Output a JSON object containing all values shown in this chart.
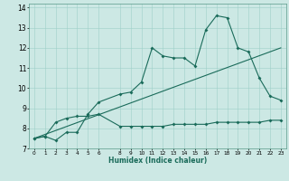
{
  "xlabel": "Humidex (Indice chaleur)",
  "background_color": "#cce8e4",
  "line_color": "#1a6b5a",
  "xlim": [
    -0.5,
    23.5
  ],
  "ylim": [
    7,
    14.2
  ],
  "yticks": [
    7,
    8,
    9,
    10,
    11,
    12,
    13,
    14
  ],
  "xtick_vals": [
    0,
    1,
    2,
    3,
    4,
    5,
    6,
    8,
    9,
    10,
    11,
    12,
    13,
    14,
    15,
    16,
    17,
    18,
    19,
    20,
    21,
    22,
    23
  ],
  "xtick_labels": [
    "0",
    "1",
    "2",
    "3",
    "4",
    "5",
    "6",
    "8",
    "9",
    "10",
    "11",
    "12",
    "13",
    "14",
    "15",
    "16",
    "17",
    "18",
    "19",
    "20",
    "21",
    "22",
    "23"
  ],
  "main_x": [
    0,
    1,
    2,
    3,
    4,
    5,
    6,
    8,
    9,
    10,
    11,
    12,
    13,
    14,
    15,
    16,
    17,
    18,
    19,
    20,
    21,
    22,
    23
  ],
  "main_y": [
    7.5,
    7.6,
    7.4,
    7.8,
    7.8,
    8.7,
    9.3,
    9.7,
    9.8,
    10.3,
    12.0,
    11.6,
    11.5,
    11.5,
    11.1,
    12.9,
    13.6,
    13.5,
    12.0,
    11.8,
    10.5,
    9.6,
    9.4
  ],
  "line2_x": [
    0,
    1,
    2,
    3,
    4,
    5,
    6,
    8,
    9,
    10,
    11,
    12,
    13,
    14,
    15,
    16,
    17,
    18,
    19,
    20,
    21,
    22,
    23
  ],
  "line2_y": [
    7.5,
    7.6,
    8.3,
    8.5,
    8.6,
    8.6,
    8.7,
    8.1,
    8.1,
    8.1,
    8.1,
    8.1,
    8.2,
    8.2,
    8.2,
    8.2,
    8.3,
    8.3,
    8.3,
    8.3,
    8.3,
    8.4,
    8.4
  ],
  "line3_x": [
    0,
    23
  ],
  "line3_y": [
    7.5,
    12.0
  ]
}
